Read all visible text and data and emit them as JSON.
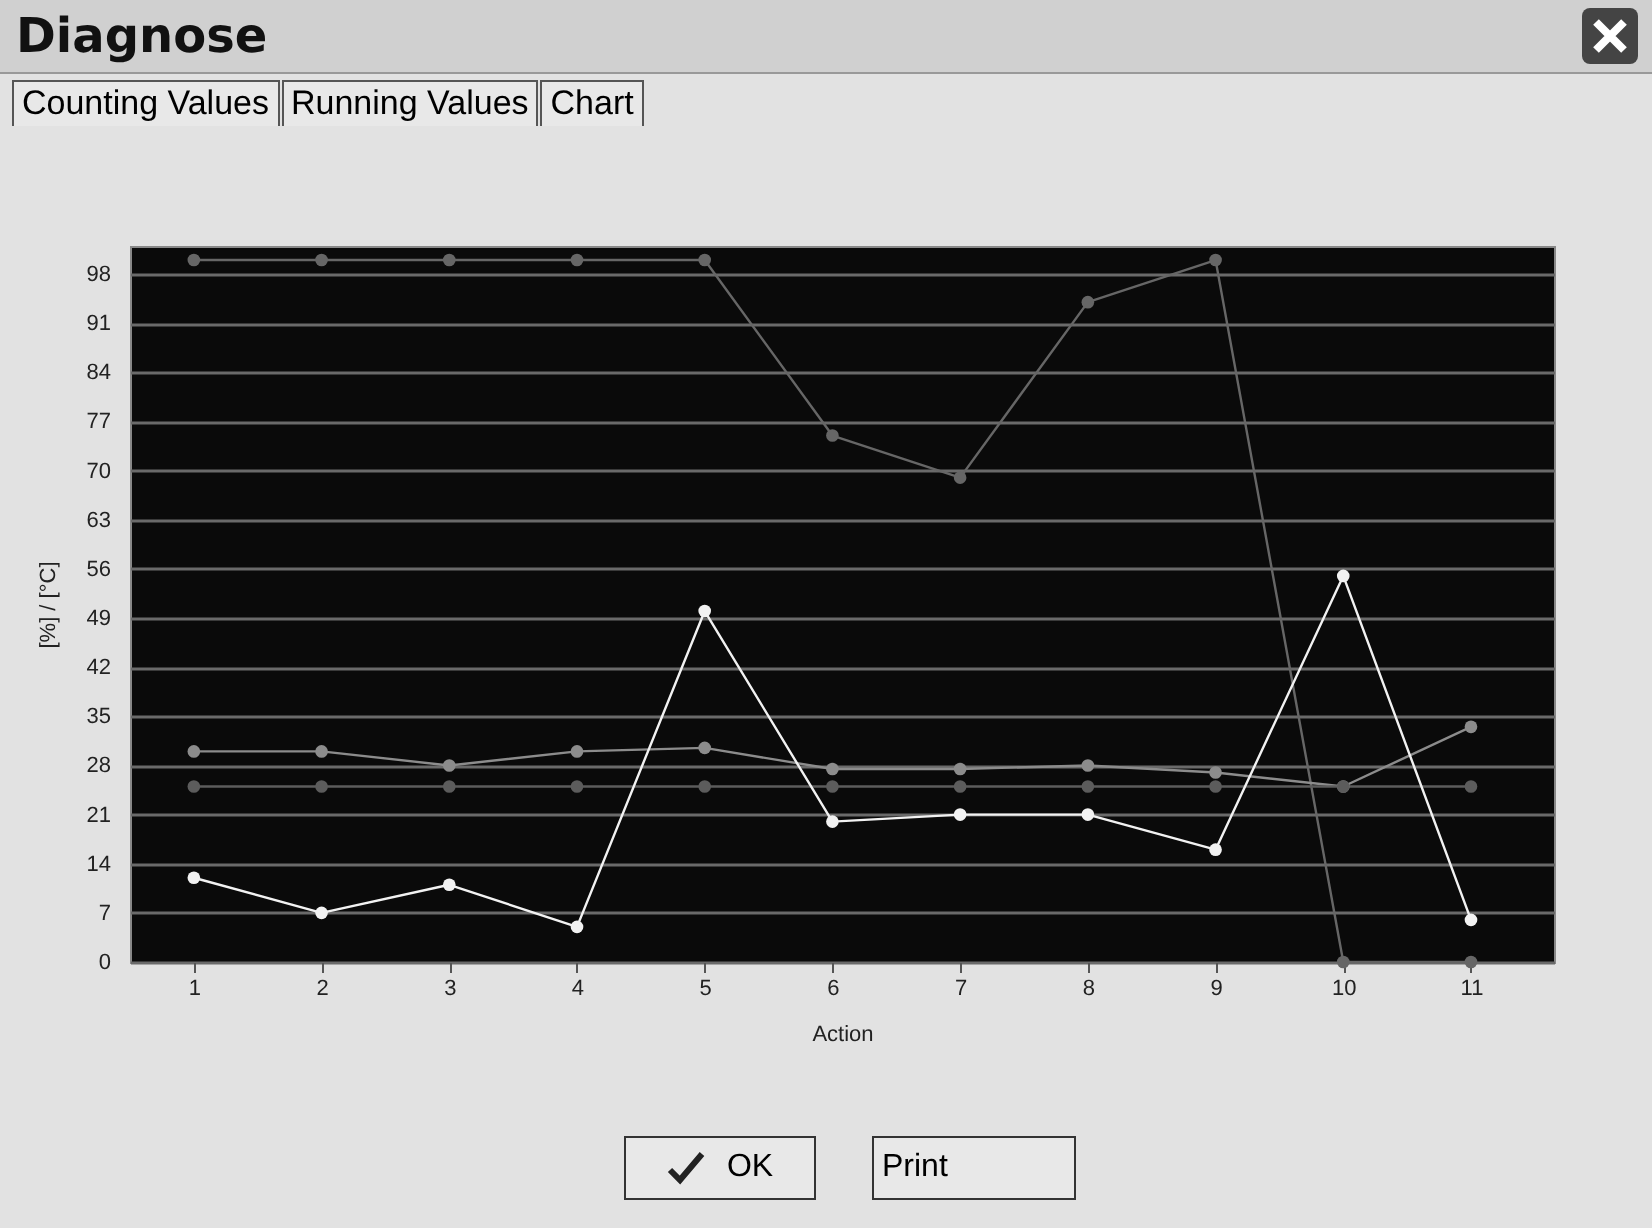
{
  "chart_data": {
    "type": "line",
    "title": "Diagnose",
    "xlabel": "Action",
    "ylabel": "[%] / [°C]",
    "x": [
      1,
      2,
      3,
      4,
      5,
      6,
      7,
      8,
      9,
      10,
      11
    ],
    "series": [
      {
        "color": "#666666",
        "values": [
          100,
          100,
          100,
          100,
          100,
          75,
          69,
          94,
          100,
          0,
          0
        ]
      },
      {
        "color": "#8c8c8c",
        "values": [
          30,
          30,
          28,
          30,
          30.5,
          27.5,
          27.5,
          28,
          27,
          25,
          33.5
        ]
      },
      {
        "color": "#5c5c5c",
        "values": [
          25,
          25,
          25,
          25,
          25,
          25,
          25,
          25,
          25,
          25,
          25
        ]
      },
      {
        "color": "#f2f2f2",
        "values": [
          12,
          7,
          11,
          5,
          50,
          20,
          21,
          21,
          16,
          55,
          6
        ]
      }
    ],
    "xlim": [
      0.5,
      11.65
    ],
    "xticks": [
      1,
      2,
      3,
      4,
      5,
      6,
      7,
      8,
      9,
      10,
      11
    ],
    "ylim": [
      0,
      102
    ],
    "yticks": [
      0,
      7,
      14,
      21,
      28,
      35,
      42,
      49,
      56,
      63,
      70,
      77,
      84,
      91,
      98
    ],
    "grid": "y",
    "marker": "circle",
    "line_style": "solid",
    "legend": false,
    "annotations": [
      "Counting Values",
      "Running Values",
      "Chart",
      "OK",
      "Print"
    ]
  }
}
